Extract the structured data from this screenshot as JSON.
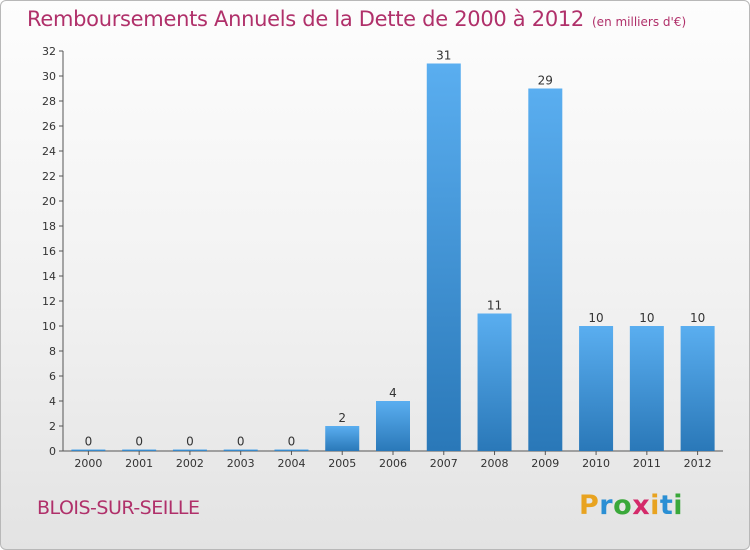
{
  "title": "Remboursements Annuels de la Dette de 2000 à 2012",
  "unit_note": "(en milliers d'€)",
  "commune": "BLOIS-SUR-SEILLE",
  "logo": {
    "letters": [
      "P",
      "r",
      "o",
      "x",
      "i",
      "t",
      "i"
    ],
    "colors": [
      "#e8a320",
      "#2a8fd4",
      "#3aa83a",
      "#d42a6a",
      "#e8a320",
      "#2a8fd4",
      "#3aa83a"
    ]
  },
  "chart_data": {
    "type": "bar",
    "title": "Remboursements Annuels de la Dette de 2000 à 2012",
    "ylabel": "",
    "xlabel": "",
    "categories": [
      "2000",
      "2001",
      "2002",
      "2003",
      "2004",
      "2005",
      "2006",
      "2007",
      "2008",
      "2009",
      "2010",
      "2011",
      "2012"
    ],
    "values": [
      0,
      0,
      0,
      0,
      0,
      2,
      4,
      31,
      11,
      29,
      10,
      10,
      10
    ],
    "ylim": [
      0,
      32
    ],
    "yticks": [
      0,
      2,
      4,
      6,
      8,
      10,
      12,
      14,
      16,
      18,
      20,
      22,
      24,
      26,
      28,
      30,
      32
    ],
    "grid": false,
    "bar_color": "#3d95d6"
  }
}
